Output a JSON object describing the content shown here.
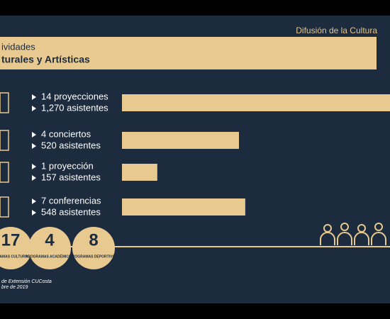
{
  "header": {
    "section": "Difusión de la Cultura",
    "title_line1": "ividades",
    "title_line2": "turales y Artísticas"
  },
  "items": [
    {
      "line1": "14 proyecciones",
      "line2": "1,270 asistentes",
      "value": 1270
    },
    {
      "line1": "4 conciertos",
      "line2": "520 asistentes",
      "value": 520
    },
    {
      "line1": "1 proyección",
      "line2": "157 asistentes",
      "value": 157
    },
    {
      "line1": "7 conferencias",
      "line2": "548 asistentes",
      "value": 548
    }
  ],
  "programs": [
    {
      "number": "17",
      "label": "PROGRAMAS CULTURALES"
    },
    {
      "number": "4",
      "label": "PROGRAMAS ACADÉMICOS"
    },
    {
      "number": "8",
      "label": "PROGRAMAS DEPORTIVOS"
    }
  ],
  "footer": {
    "line1": "de Extensión CUCosta",
    "line2": "bre de 2019"
  }
}
